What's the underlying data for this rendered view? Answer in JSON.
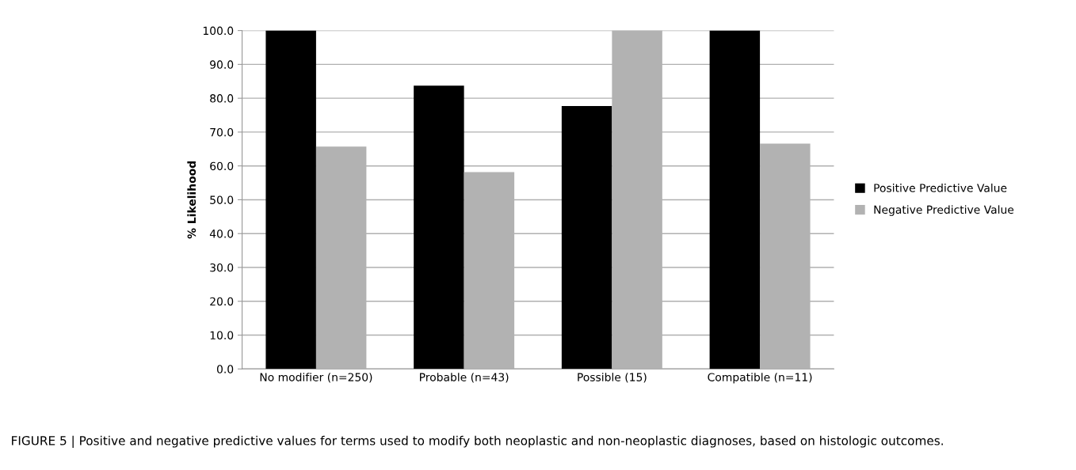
{
  "chart_data": {
    "type": "bar",
    "ylabel": "% Likelihood",
    "categories": [
      "No modifier (n=250)",
      "Probable (n=43)",
      "Possible (15)",
      "Compatible (n=11)"
    ],
    "series": [
      {
        "name": "Positive Predictive Value",
        "color": "#000000",
        "values": [
          100.0,
          83.7,
          77.7,
          100.0
        ]
      },
      {
        "name": "Negative Predictive Value",
        "color": "#b2b2b2",
        "values": [
          65.7,
          58.2,
          100.0,
          66.6
        ]
      }
    ],
    "ylim": [
      0,
      100
    ],
    "yticks": [
      {
        "value": 0,
        "label": "0.0"
      },
      {
        "value": 10,
        "label": "10.0"
      },
      {
        "value": 20,
        "label": "20.0"
      },
      {
        "value": 30,
        "label": "30.0"
      },
      {
        "value": 40,
        "label": "40.0"
      },
      {
        "value": 50,
        "label": "50.0"
      },
      {
        "value": 60,
        "label": "60.0"
      },
      {
        "value": 70,
        "label": "70.0"
      },
      {
        "value": 80,
        "label": "80.0"
      },
      {
        "value": 90,
        "label": "90.0"
      },
      {
        "value": 100,
        "label": "100.0"
      }
    ],
    "grid": "y",
    "legend": "right",
    "annotations": [
      "FIGURE 5 | Positive and negative predictive values for terms used to modify both neoplastic and non-neoplastic diagnoses, based on histologic outcomes."
    ]
  }
}
